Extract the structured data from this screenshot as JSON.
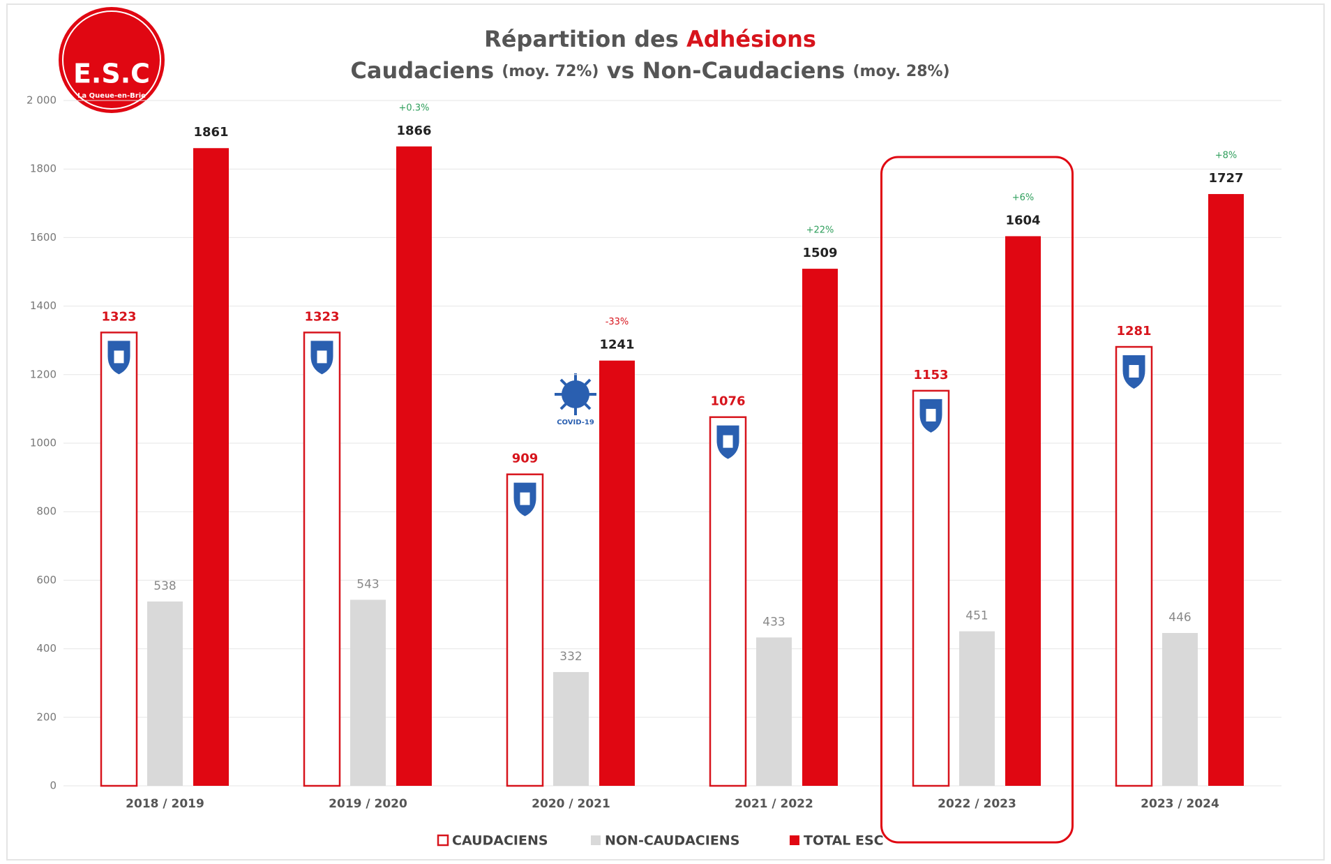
{
  "logo": {
    "initials": "E.S.C",
    "town": "La Queue-en-Brie"
  },
  "covid_label": "COVID-19",
  "chart_data": {
    "type": "bar",
    "title": {
      "prefix": "Répartition des",
      "highlight": "Adhésions"
    },
    "subtitle": {
      "group1": "Caudaciens",
      "avg1": "(moy. 72%)",
      "group2": "vs Non-Caudaciens",
      "avg2": "(moy. 28%)"
    },
    "categories": [
      "2018 / 2019",
      "2019 / 2020",
      "2020 / 2021",
      "2021 / 2022",
      "2022 / 2023",
      "2023 / 2024"
    ],
    "series": [
      {
        "name": "CAUDACIENS",
        "color": "#d7141c",
        "style": "outline",
        "values": [
          1323,
          1323,
          909,
          1076,
          1153,
          1281
        ]
      },
      {
        "name": "NON-CAUDACIENS",
        "color": "#d9d9d9",
        "style": "fill",
        "values": [
          538,
          543,
          332,
          433,
          451,
          446
        ]
      },
      {
        "name": "TOTAL ESC",
        "color": "#e00712",
        "style": "fill",
        "values": [
          1861,
          1866,
          1241,
          1509,
          1604,
          1727
        ]
      }
    ],
    "changes": [
      null,
      "+0.3%",
      "-33%",
      "+22%",
      "+6%",
      "+8%"
    ],
    "ylim": [
      0,
      2000
    ],
    "yticks": [
      0,
      200,
      400,
      600,
      800,
      1000,
      1200,
      1400,
      1600,
      1800,
      {
        "value": 2000,
        "label": "2 000"
      }
    ],
    "grid": true,
    "legend": "bottom",
    "highlight_category": 4
  }
}
